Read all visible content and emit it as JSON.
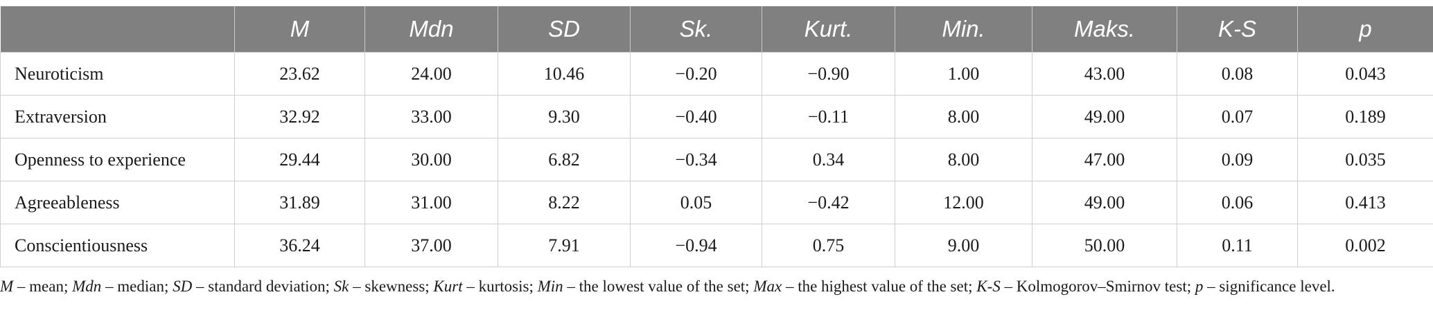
{
  "table": {
    "columns": [
      "",
      "M",
      "Mdn",
      "SD",
      "Sk.",
      "Kurt.",
      "Min.",
      "Maks.",
      "K-S",
      "p"
    ],
    "rows": [
      [
        "Neuroticism",
        "23.62",
        "24.00",
        "10.46",
        "−0.20",
        "−0.90",
        "1.00",
        "43.00",
        "0.08",
        "0.043"
      ],
      [
        "Extraversion",
        "32.92",
        "33.00",
        "9.30",
        "−0.40",
        "−0.11",
        "8.00",
        "49.00",
        "0.07",
        "0.189"
      ],
      [
        "Openness to experience",
        "29.44",
        "30.00",
        "6.82",
        "−0.34",
        "0.34",
        "8.00",
        "47.00",
        "0.09",
        "0.035"
      ],
      [
        "Agreeableness",
        "31.89",
        "31.00",
        "8.22",
        "0.05",
        "−0.42",
        "12.00",
        "49.00",
        "0.06",
        "0.413"
      ],
      [
        "Conscientiousness",
        "36.24",
        "37.00",
        "7.91",
        "−0.94",
        "0.75",
        "9.00",
        "50.00",
        "0.11",
        "0.002"
      ]
    ]
  },
  "note": {
    "parts": [
      {
        "t": "M",
        "i": true
      },
      {
        "t": " – mean; ",
        "i": false
      },
      {
        "t": "Mdn",
        "i": true
      },
      {
        "t": " – median; ",
        "i": false
      },
      {
        "t": "SD",
        "i": true
      },
      {
        "t": " – standard deviation; ",
        "i": false
      },
      {
        "t": "Sk",
        "i": true
      },
      {
        "t": " – skewness; ",
        "i": false
      },
      {
        "t": "Kurt",
        "i": true
      },
      {
        "t": " – kurtosis; ",
        "i": false
      },
      {
        "t": "Min",
        "i": true
      },
      {
        "t": " – the lowest value of the set; ",
        "i": false
      },
      {
        "t": "Max",
        "i": true
      },
      {
        "t": " – the highest value of the set; ",
        "i": false
      },
      {
        "t": "K-S",
        "i": true
      },
      {
        "t": " – Kolmogorov–Smirnov test; ",
        "i": false
      },
      {
        "t": "p",
        "i": true
      },
      {
        "t": " – significance level.",
        "i": false
      }
    ]
  }
}
